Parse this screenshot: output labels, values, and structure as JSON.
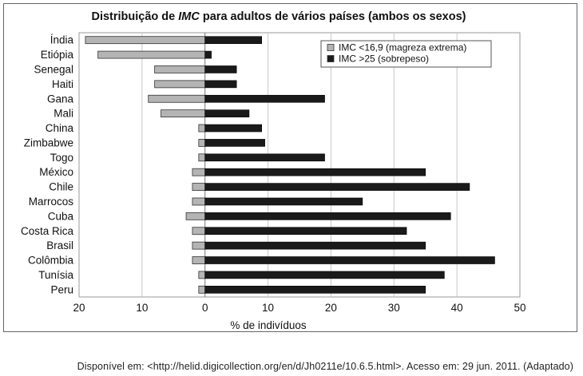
{
  "chart_data": {
    "type": "bar",
    "orientation": "horizontal",
    "title_parts": [
      "Distribuição de ",
      "IMC",
      " para adultos de vários países (ambos os sexos)"
    ],
    "xlabel": "% de indivíduos",
    "ylabel": "",
    "xlim": [
      -20,
      50
    ],
    "x_ticks": [
      -20,
      -10,
      0,
      10,
      20,
      30,
      40,
      50
    ],
    "x_tick_labels": [
      "20",
      "10",
      "0",
      "10",
      "20",
      "30",
      "40",
      "50"
    ],
    "grid": "vertical",
    "legend_position": "top-right",
    "categories": [
      "Índia",
      "Etiópia",
      "Senegal",
      "Haiti",
      "Gana",
      "Mali",
      "China",
      "Zimbabwe",
      "Togo",
      "México",
      "Chile",
      "Marrocos",
      "Cuba",
      "Costa Rica",
      "Brasil",
      "Colômbia",
      "Tunísia",
      "Peru"
    ],
    "series": [
      {
        "name": "IMC <16,9 (magreza extrema)",
        "color": "#b4b4b4",
        "direction": "left",
        "values": [
          19,
          17,
          8,
          8,
          9,
          7,
          1,
          1,
          1,
          2,
          2,
          2,
          3,
          2,
          2,
          2,
          1,
          1
        ]
      },
      {
        "name": "IMC >25 (sobrepeso)",
        "color": "#1a1a1a",
        "direction": "right",
        "values": [
          9,
          1,
          5,
          5,
          19,
          7,
          9,
          9.5,
          19,
          35,
          42,
          25,
          39,
          32,
          35,
          46,
          38,
          35
        ]
      }
    ]
  },
  "source": "Disponível em: <http://helid.digicollection.org/en/d/Jh0211e/10.6.5.html>. Acesso em: 29 jun. 2011. (Adaptado)"
}
